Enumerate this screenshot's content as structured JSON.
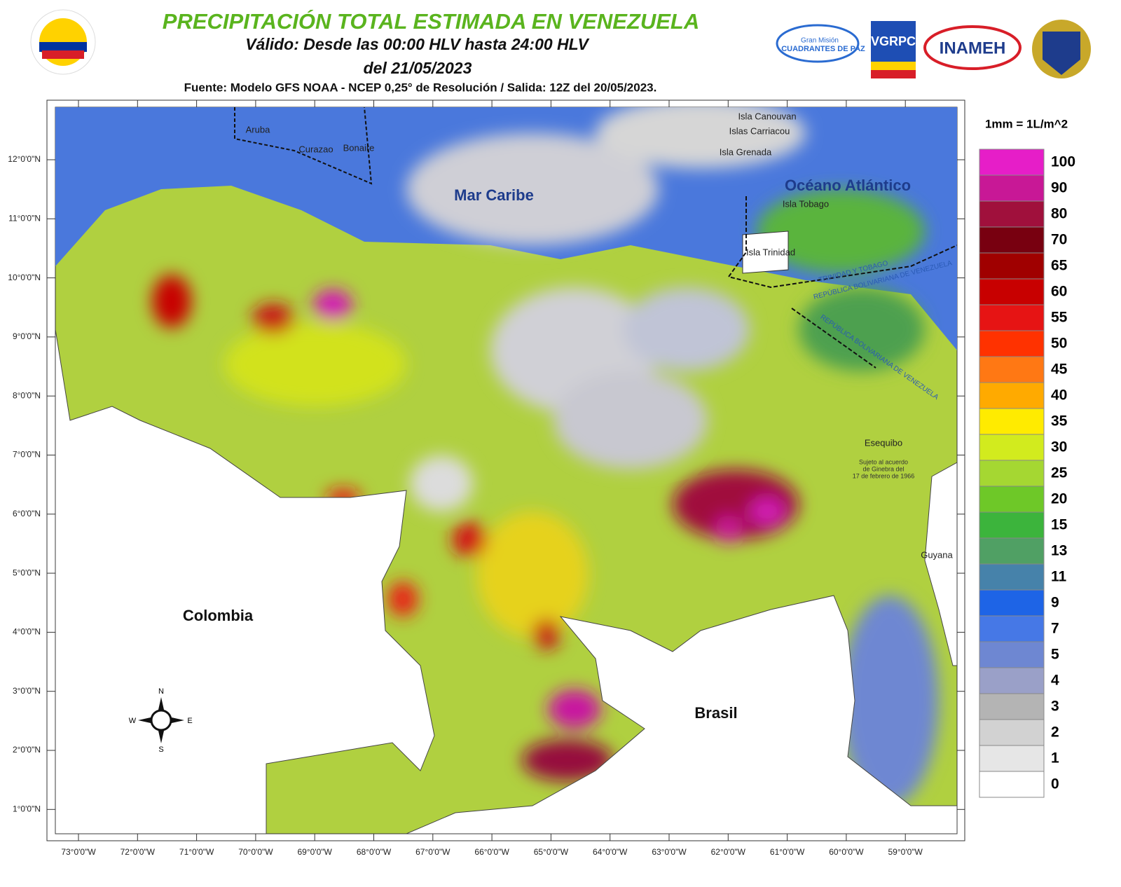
{
  "header": {
    "title": "PRECIPITACIÓN TOTAL ESTIMADA EN VENEZUELA",
    "subtitle_1": "Válido: Desde las 00:00 HLV hasta 24:00 HLV",
    "subtitle_2": "del 21/05/2023",
    "source": "Fuente: Modelo GFS NOAA - NCEP 0,25° de Resolución / Salida: 12Z del 20/05/2023."
  },
  "logos": {
    "cuadrantes_1": "Gran Misión",
    "cuadrantes_2": "CUADRANTES DE PAZ",
    "vgrpc": "VGRPC",
    "inameh": "INAMEH"
  },
  "map": {
    "labels": {
      "mar_caribe": "Mar Caribe",
      "oceano": "Océano Atlántico",
      "colombia": "Colombia",
      "brasil": "Brasil",
      "guyana": "Guyana",
      "aruba": "Aruba",
      "curazao": "Curazao",
      "bonaire": "Bonaire",
      "canouvan": "Isla Canouvan",
      "carriacou": "Islas Carriacou",
      "grenada": "Isla Grenada",
      "tobago": "Isla Tobago",
      "trinidad": "Isla Trinidad",
      "esequibo": "Esequibo",
      "acuerdo_1": "Sujeto al acuerdo",
      "acuerdo_2": "de Ginebra del",
      "acuerdo_3": "17 de febrero de 1966",
      "tt": "TRINIDAD Y TOBAGO",
      "rbv1": "REPÚBLICA BOLIVARIANA DE VENEZUELA",
      "rbv2": "REPÚBLICA BOLIVARIANA DE VENEZUELA"
    },
    "compass": {
      "n": "N",
      "s": "S",
      "e": "E",
      "w": "W"
    },
    "lat_ticks": [
      "12°0'0\"N",
      "11°0'0\"N",
      "10°0'0\"N",
      "9°0'0\"N",
      "8°0'0\"N",
      "7°0'0\"N",
      "6°0'0\"N",
      "5°0'0\"N",
      "4°0'0\"N",
      "3°0'0\"N",
      "2°0'0\"N",
      "1°0'0\"N"
    ],
    "lon_ticks": [
      "73°0'0\"W",
      "72°0'0\"W",
      "71°0'0\"W",
      "70°0'0\"W",
      "69°0'0\"W",
      "68°0'0\"W",
      "67°0'0\"W",
      "66°0'0\"W",
      "65°0'0\"W",
      "64°0'0\"W",
      "63°0'0\"W",
      "62°0'0\"W",
      "61°0'0\"W",
      "60°0'0\"W",
      "59°0'0\"W"
    ]
  },
  "legend": {
    "unit": "1mm = 1L/m^2",
    "levels": [
      {
        "value": 100,
        "color": "#e61ec8"
      },
      {
        "value": 90,
        "color": "#c81896"
      },
      {
        "value": 80,
        "color": "#a0103c"
      },
      {
        "value": 70,
        "color": "#780010"
      },
      {
        "value": 65,
        "color": "#a00000"
      },
      {
        "value": 60,
        "color": "#c80000"
      },
      {
        "value": 55,
        "color": "#e61414"
      },
      {
        "value": 50,
        "color": "#ff3200"
      },
      {
        "value": 45,
        "color": "#ff7814"
      },
      {
        "value": 40,
        "color": "#ffaa00"
      },
      {
        "value": 35,
        "color": "#ffeb00"
      },
      {
        "value": 30,
        "color": "#d2eb1e"
      },
      {
        "value": 25,
        "color": "#a5d732"
      },
      {
        "value": 20,
        "color": "#6ec828"
      },
      {
        "value": 15,
        "color": "#3cb43c"
      },
      {
        "value": 13,
        "color": "#50a064"
      },
      {
        "value": 11,
        "color": "#4682aa"
      },
      {
        "value": 9,
        "color": "#1e64e6"
      },
      {
        "value": 7,
        "color": "#4678e6"
      },
      {
        "value": 5,
        "color": "#6e87d2"
      },
      {
        "value": 4,
        "color": "#9aa0c8"
      },
      {
        "value": 3,
        "color": "#b4b4b4"
      },
      {
        "value": 2,
        "color": "#d2d2d2"
      },
      {
        "value": 1,
        "color": "#e6e6e6"
      },
      {
        "value": 0,
        "color": "#ffffff"
      }
    ]
  }
}
